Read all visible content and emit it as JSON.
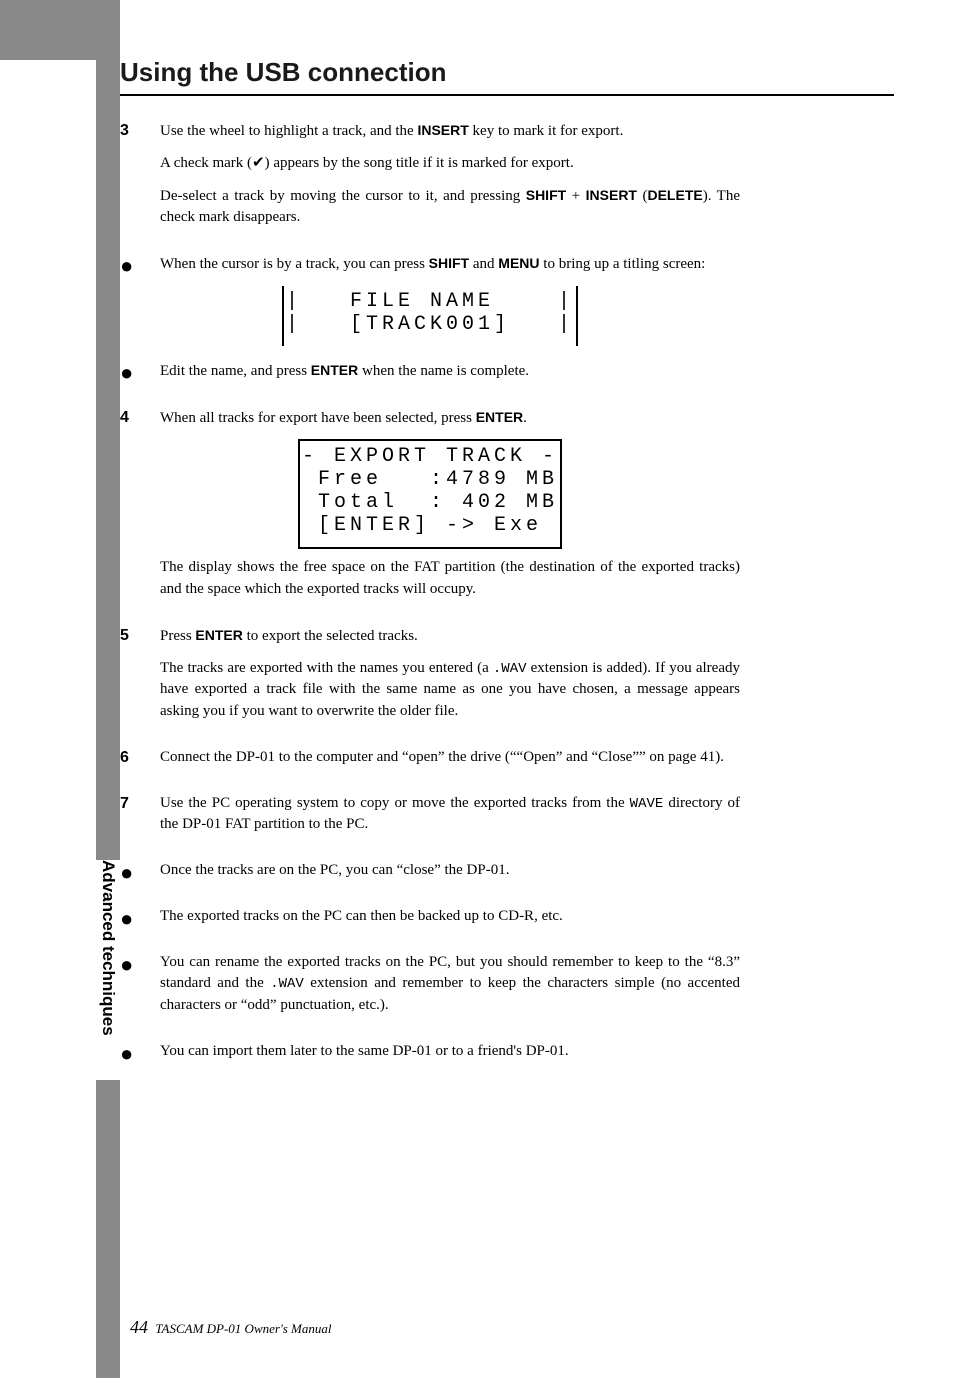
{
  "heading": "Using the USB connection",
  "steps": [
    {
      "num": "3",
      "paras": [
        {
          "html": "Use the wheel to highlight a track, and the <span class='kw'>INSERT</span> key to mark it for export."
        },
        {
          "html": "A check mark (✔) appears by the song title if it is marked for export."
        },
        {
          "html": "De-select a track by moving the cursor to it, and pressing <span class='kw'>SHIFT</span> + <span class='kw'>INSERT</span> (<span class='kw'>DELETE</span>). The check mark disappears."
        }
      ]
    },
    {
      "num": "●",
      "paras": [
        {
          "html": "When the cursor is by a track, you can press <span class='kw'>SHIFT</span> and <span class='kw'>MENU</span> to bring up a titling screen:"
        }
      ],
      "lcd": {
        "style": "1",
        "lines": [
          "|   FILE NAME    |",
          "|   [TRACK001]   |"
        ]
      }
    },
    {
      "num": "●",
      "paras": [
        {
          "html": "Edit the name, and press <span class='kw'>ENTER</span> when the name is complete."
        }
      ]
    },
    {
      "num": "4",
      "paras": [
        {
          "html": "When all tracks for export have been selected, press <span class='kw'>ENTER</span>."
        }
      ],
      "lcd": {
        "style": "2",
        "lines": [
          "- EXPORT TRACK -",
          " Free   :4789 MB",
          " Total  : 402 MB",
          " [ENTER] -> Exe "
        ]
      },
      "after": [
        {
          "html": "The display shows the free space on the FAT partition (the destination of the exported tracks) and the space which the exported tracks will occupy."
        }
      ]
    },
    {
      "num": "5",
      "paras": [
        {
          "html": "Press <span class='kw'>ENTER</span> to export the selected tracks."
        },
        {
          "html": "The tracks are exported with the names you entered (a <span class='mono'>.WAV</span> extension is added). If you already have exported a track file with the same name as one you have chosen, a message appears asking you if you want to overwrite the older file."
        }
      ]
    },
    {
      "num": "6",
      "paras": [
        {
          "html": "Connect the DP-01 to the computer and &ldquo;open&rdquo; the drive (&ldquo;&ldquo;Open&rdquo; and &ldquo;Close&rdquo;&rdquo; on page 41)."
        }
      ]
    },
    {
      "num": "7",
      "paras": [
        {
          "html": "Use the PC operating system to copy or move the exported tracks from the <span class='mono'>WAVE</span> directory of the DP-01 FAT partition to the PC."
        }
      ]
    },
    {
      "num": "●",
      "paras": [
        {
          "html": "Once the tracks are on the PC, you can &ldquo;close&rdquo; the DP-01."
        }
      ]
    },
    {
      "num": "●",
      "paras": [
        {
          "html": "The exported tracks on the PC can then be backed up to CD-R, etc."
        }
      ]
    },
    {
      "num": "●",
      "paras": [
        {
          "html": "You can rename the exported tracks on the PC, but you should remember to keep to the &ldquo;8.3&rdquo; standard and the <span class='mono'>.WAV</span> extension and remember to keep the characters simple (no accented characters or &ldquo;odd&rdquo; punctuation, etc.)."
        }
      ]
    },
    {
      "num": "●",
      "paras": [
        {
          "html": "You can import them later to the same DP-01 or to a friend's DP-01."
        }
      ]
    }
  ],
  "side_tab": "Advanced techniques",
  "footer": {
    "page": "44",
    "text": "TASCAM DP-01 Owner's Manual"
  }
}
